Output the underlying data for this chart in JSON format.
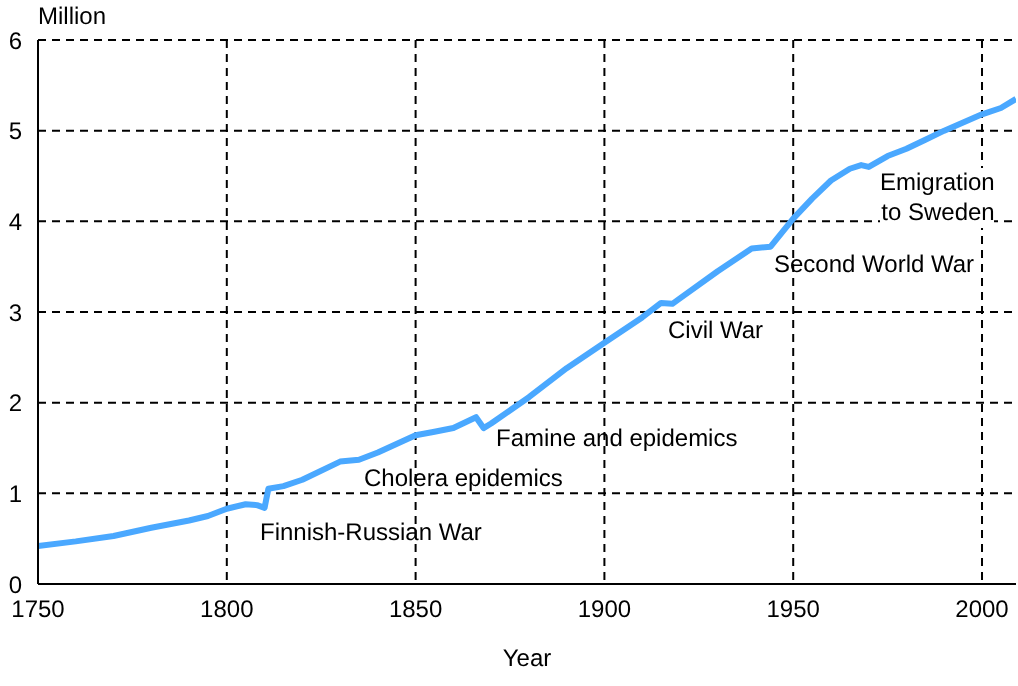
{
  "chart_data": {
    "type": "line",
    "xlabel": "Year",
    "ylabel": "Million",
    "xlim": [
      1750,
      2009
    ],
    "xticks": [
      1750,
      1800,
      1850,
      1900,
      1950,
      2000
    ],
    "ylim": [
      0,
      6
    ],
    "yticks": [
      0,
      1,
      2,
      3,
      4,
      5,
      6
    ],
    "grid": true,
    "legend": false,
    "marker": "none",
    "line_style": "solid",
    "x": [
      1750,
      1760,
      1770,
      1780,
      1790,
      1795,
      1800,
      1805,
      1808,
      1810,
      1811,
      1815,
      1820,
      1830,
      1835,
      1840,
      1850,
      1855,
      1860,
      1866,
      1868,
      1870,
      1880,
      1890,
      1900,
      1910,
      1915,
      1918,
      1920,
      1930,
      1939,
      1944,
      1950,
      1955,
      1960,
      1965,
      1968,
      1970,
      1975,
      1980,
      1985,
      1990,
      2000,
      2005,
      2009
    ],
    "series": [
      {
        "color": "#4aa8ff",
        "values": [
          0.42,
          0.47,
          0.53,
          0.62,
          0.7,
          0.75,
          0.83,
          0.88,
          0.87,
          0.84,
          1.05,
          1.08,
          1.15,
          1.35,
          1.37,
          1.45,
          1.64,
          1.68,
          1.72,
          1.84,
          1.72,
          1.77,
          2.06,
          2.38,
          2.66,
          2.94,
          3.1,
          3.09,
          3.15,
          3.45,
          3.7,
          3.72,
          4.03,
          4.25,
          4.45,
          4.58,
          4.62,
          4.6,
          4.72,
          4.8,
          4.9,
          5.0,
          5.18,
          5.25,
          5.35
        ]
      }
    ],
    "annotations": [
      "Finnish-Russian War",
      "Cholera epidemics",
      "Famine and epidemics",
      "Civil War",
      "Second World War",
      "Emigration\nto Sweden"
    ]
  }
}
